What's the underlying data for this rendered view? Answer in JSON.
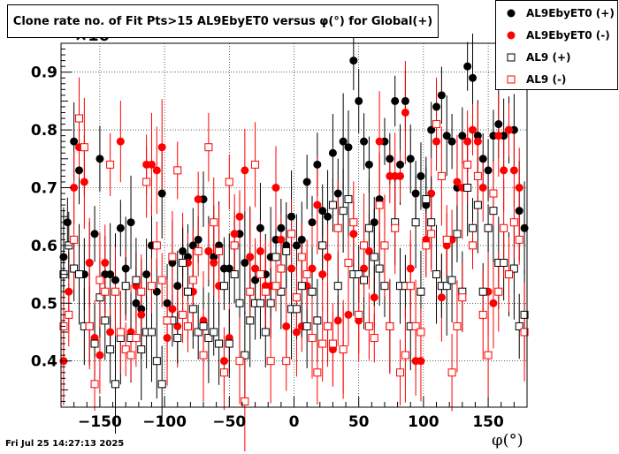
{
  "title": "Clone rate no. of Fit Pts>15 AL9EbyET0 versus φ(°) for Global(+)",
  "footer_date": "Fri Jul 25 14:27:13 2025",
  "axis_exponent": "×10",
  "xlabel": "φ(°)",
  "legend": [
    {
      "label": "AL9EbyET0 (+)",
      "marker": "filled-circle",
      "color": "#000000"
    },
    {
      "label": "AL9EbyET0 (-)",
      "marker": "filled-circle",
      "color": "#ff0000"
    },
    {
      "label": "AL9 (+)",
      "marker": "open-square",
      "color": "#000000"
    },
    {
      "label": "AL9 (-)",
      "marker": "open-square",
      "color": "#ff0000"
    }
  ],
  "chart_data": {
    "type": "scatter",
    "title": "Clone rate no. of Fit Pts>15 AL9EbyET0 versus φ(°) for Global(+)",
    "xlabel": "φ(°)",
    "ylabel": "",
    "xlim": [
      -180,
      180
    ],
    "ylim": [
      0.32,
      0.95
    ],
    "xticks": [
      -150,
      -100,
      -50,
      0,
      50,
      100,
      150
    ],
    "yticks": [
      0.4,
      0.5,
      0.6,
      0.7,
      0.8,
      0.9
    ],
    "grid": true,
    "legend_position": "top-right",
    "series": [
      {
        "name": "AL9EbyET0 (+)",
        "marker": "filled-circle",
        "color": "#000000",
        "x": [
          -178,
          -175,
          -170,
          -166,
          -162,
          -158,
          -154,
          -150,
          -146,
          -142,
          -138,
          -134,
          -130,
          -126,
          -122,
          -118,
          -114,
          -110,
          -106,
          -102,
          -98,
          -94,
          -90,
          -86,
          -82,
          -78,
          -74,
          -70,
          -66,
          -62,
          -58,
          -54,
          -50,
          -46,
          -42,
          -38,
          -34,
          -30,
          -26,
          -22,
          -18,
          -14,
          -10,
          -6,
          -2,
          2,
          6,
          10,
          14,
          18,
          22,
          26,
          30,
          34,
          38,
          42,
          46,
          50,
          54,
          58,
          62,
          66,
          70,
          74,
          78,
          82,
          86,
          90,
          94,
          98,
          102,
          106,
          110,
          114,
          118,
          122,
          126,
          130,
          134,
          138,
          142,
          146,
          150,
          154,
          158,
          162,
          166,
          170,
          174,
          178
        ],
        "y": [
          0.58,
          0.64,
          0.78,
          0.73,
          0.55,
          0.57,
          0.62,
          0.75,
          0.55,
          0.55,
          0.54,
          0.63,
          0.56,
          0.64,
          0.5,
          0.49,
          0.55,
          0.6,
          0.52,
          0.69,
          0.5,
          0.57,
          0.53,
          0.59,
          0.58,
          0.6,
          0.61,
          0.68,
          0.59,
          0.58,
          0.6,
          0.56,
          0.56,
          0.6,
          0.62,
          0.57,
          0.58,
          0.54,
          0.63,
          0.55,
          0.58,
          0.61,
          0.63,
          0.6,
          0.65,
          0.6,
          0.61,
          0.71,
          0.64,
          0.74,
          0.66,
          0.65,
          0.76,
          0.69,
          0.78,
          0.77,
          0.92,
          0.85,
          0.78,
          0.74,
          0.64,
          0.68,
          0.78,
          0.75,
          0.85,
          0.74,
          0.85,
          0.75,
          0.69,
          0.72,
          0.67,
          0.8,
          0.84,
          0.86,
          0.79,
          0.78,
          0.7,
          0.79,
          0.91,
          0.89,
          0.79,
          0.75,
          0.73,
          0.79,
          0.81,
          0.79,
          0.8,
          0.8,
          0.66,
          0.63
        ]
      },
      {
        "name": "AL9EbyET0 (-)",
        "marker": "filled-circle",
        "color": "#ff0000",
        "x": [
          -178,
          -174,
          -170,
          -166,
          -162,
          -158,
          -154,
          -150,
          -146,
          -142,
          -138,
          -134,
          -130,
          -126,
          -122,
          -118,
          -114,
          -110,
          -106,
          -102,
          -98,
          -94,
          -90,
          -86,
          -82,
          -78,
          -74,
          -70,
          -66,
          -62,
          -58,
          -54,
          -50,
          -46,
          -42,
          -38,
          -34,
          -30,
          -26,
          -22,
          -18,
          -14,
          -10,
          -6,
          -2,
          2,
          6,
          10,
          14,
          18,
          22,
          26,
          30,
          34,
          38,
          42,
          46,
          50,
          54,
          58,
          62,
          66,
          70,
          74,
          78,
          82,
          86,
          90,
          94,
          98,
          102,
          106,
          110,
          114,
          118,
          122,
          126,
          130,
          134,
          138,
          142,
          146,
          150,
          154,
          158,
          162,
          166,
          170,
          174,
          178
        ],
        "y": [
          0.4,
          0.52,
          0.7,
          0.77,
          0.71,
          0.57,
          0.44,
          0.41,
          0.57,
          0.45,
          0.52,
          0.78,
          0.53,
          0.45,
          0.53,
          0.48,
          0.74,
          0.74,
          0.73,
          0.77,
          0.44,
          0.49,
          0.46,
          0.57,
          0.57,
          0.52,
          0.68,
          0.47,
          0.59,
          0.57,
          0.53,
          0.4,
          0.44,
          0.62,
          0.65,
          0.73,
          0.58,
          0.56,
          0.59,
          0.53,
          0.53,
          0.7,
          0.61,
          0.46,
          0.56,
          0.45,
          0.46,
          0.53,
          0.56,
          0.67,
          0.55,
          0.58,
          0.42,
          0.47,
          0.42,
          0.48,
          0.62,
          0.47,
          0.56,
          0.59,
          0.51,
          0.78,
          0.6,
          0.72,
          0.72,
          0.72,
          0.83,
          0.56,
          0.4,
          0.4,
          0.61,
          0.69,
          0.78,
          0.51,
          0.6,
          0.61,
          0.71,
          0.7,
          0.78,
          0.8,
          0.78,
          0.7,
          0.52,
          0.5,
          0.79,
          0.73,
          0.8,
          0.73,
          0.7,
          0.45
        ]
      },
      {
        "name": "AL9 (+)",
        "marker": "open-square",
        "color": "#000000",
        "x": [
          -178,
          -174,
          -170,
          -166,
          -162,
          -158,
          -154,
          -150,
          -146,
          -142,
          -138,
          -134,
          -130,
          -126,
          -122,
          -118,
          -114,
          -110,
          -106,
          -102,
          -98,
          -94,
          -90,
          -86,
          -82,
          -78,
          -74,
          -70,
          -66,
          -62,
          -58,
          -54,
          -50,
          -46,
          -42,
          -38,
          -34,
          -30,
          -26,
          -22,
          -18,
          -14,
          -10,
          -6,
          -2,
          2,
          6,
          10,
          14,
          18,
          22,
          26,
          30,
          34,
          38,
          42,
          46,
          50,
          54,
          58,
          62,
          66,
          70,
          74,
          78,
          82,
          86,
          90,
          94,
          98,
          102,
          106,
          110,
          114,
          118,
          122,
          126,
          130,
          134,
          138,
          142,
          146,
          150,
          154,
          158,
          162,
          166,
          170,
          174,
          178
        ],
        "y": [
          0.55,
          0.6,
          0.56,
          0.55,
          0.46,
          0.46,
          0.43,
          0.51,
          0.47,
          0.42,
          0.36,
          0.44,
          0.53,
          0.44,
          0.54,
          0.42,
          0.45,
          0.45,
          0.4,
          0.36,
          0.47,
          0.47,
          0.44,
          0.57,
          0.52,
          0.49,
          0.45,
          0.46,
          0.44,
          0.45,
          0.43,
          0.53,
          0.43,
          0.55,
          0.5,
          0.41,
          0.47,
          0.5,
          0.5,
          0.45,
          0.5,
          0.58,
          0.52,
          0.59,
          0.49,
          0.49,
          0.53,
          0.46,
          0.52,
          0.47,
          0.6,
          0.46,
          0.67,
          0.53,
          0.66,
          0.68,
          0.55,
          0.55,
          0.54,
          0.63,
          0.58,
          0.56,
          0.53,
          0.46,
          0.64,
          0.53,
          0.53,
          0.46,
          0.64,
          0.52,
          0.68,
          0.64,
          0.55,
          0.53,
          0.53,
          0.54,
          0.62,
          0.52,
          0.7,
          0.63,
          0.67,
          0.52,
          0.63,
          0.66,
          0.57,
          0.57,
          0.55,
          0.56,
          0.46,
          0.48
        ]
      },
      {
        "name": "AL9 (-)",
        "marker": "open-square",
        "color": "#ff0000",
        "x": [
          -178,
          -174,
          -170,
          -166,
          -162,
          -158,
          -154,
          -150,
          -146,
          -142,
          -138,
          -134,
          -130,
          -126,
          -122,
          -118,
          -114,
          -110,
          -106,
          -102,
          -98,
          -94,
          -90,
          -86,
          -82,
          -78,
          -74,
          -70,
          -66,
          -62,
          -58,
          -54,
          -50,
          -46,
          -42,
          -38,
          -34,
          -30,
          -26,
          -22,
          -18,
          -14,
          -10,
          -6,
          -2,
          2,
          6,
          10,
          14,
          18,
          22,
          26,
          30,
          34,
          38,
          42,
          46,
          50,
          54,
          58,
          62,
          66,
          70,
          74,
          78,
          82,
          86,
          90,
          94,
          98,
          102,
          106,
          110,
          114,
          118,
          122,
          126,
          130,
          134,
          138,
          142,
          146,
          150,
          154,
          158,
          162,
          166,
          170,
          174,
          178
        ],
        "y": [
          0.46,
          0.48,
          0.61,
          0.82,
          0.77,
          0.46,
          0.36,
          0.54,
          0.52,
          0.74,
          0.52,
          0.45,
          0.42,
          0.41,
          0.44,
          0.52,
          0.71,
          0.53,
          0.6,
          0.54,
          0.47,
          0.58,
          0.73,
          0.48,
          0.46,
          0.54,
          0.59,
          0.41,
          0.77,
          0.64,
          0.59,
          0.38,
          0.71,
          0.6,
          0.4,
          0.33,
          0.52,
          0.74,
          0.55,
          0.52,
          0.4,
          0.53,
          0.56,
          0.4,
          0.62,
          0.51,
          0.58,
          0.55,
          0.44,
          0.38,
          0.43,
          0.46,
          0.43,
          0.63,
          0.42,
          0.57,
          0.64,
          0.48,
          0.6,
          0.46,
          0.44,
          0.67,
          0.6,
          0.46,
          0.63,
          0.38,
          0.41,
          0.53,
          0.46,
          0.45,
          0.6,
          0.62,
          0.81,
          0.72,
          0.61,
          0.38,
          0.46,
          0.51,
          0.74,
          0.6,
          0.72,
          0.48,
          0.41,
          0.69,
          0.52,
          0.63,
          0.55,
          0.64,
          0.61,
          0.45
        ]
      }
    ]
  }
}
